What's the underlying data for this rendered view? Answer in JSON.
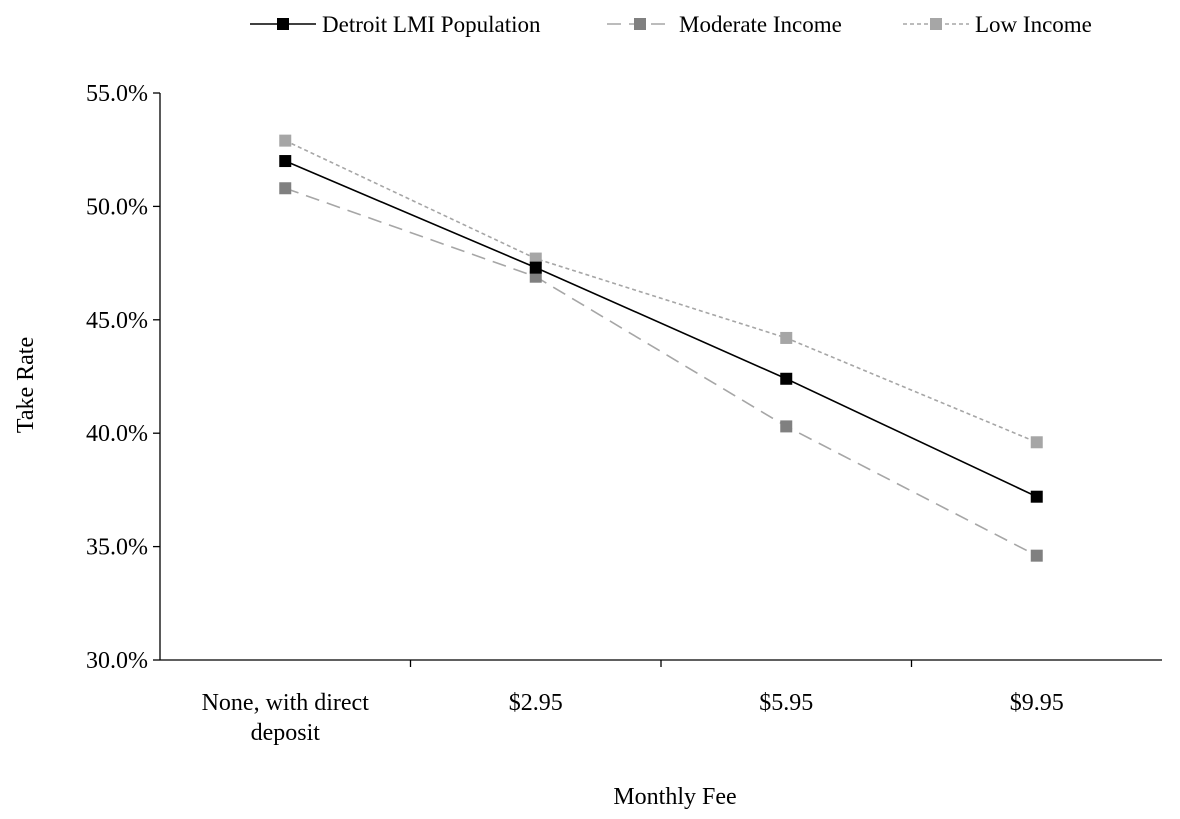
{
  "chart_data": {
    "type": "line",
    "xlabel": "Monthly Fee",
    "ylabel": "Take Rate",
    "categories": [
      [
        "None, with direct",
        "deposit"
      ],
      [
        "$2.95"
      ],
      [
        "$5.95"
      ],
      [
        "$9.95"
      ]
    ],
    "ylim": [
      30.0,
      55.0
    ],
    "y_ticks": [
      30.0,
      35.0,
      40.0,
      45.0,
      50.0,
      55.0
    ],
    "y_tick_labels": [
      "30.0%",
      "35.0%",
      "40.0%",
      "45.0%",
      "50.0%",
      "55.0%"
    ],
    "grid": false,
    "legend_position": "top",
    "series": [
      {
        "name": "Detroit LMI Population",
        "values": [
          52.0,
          47.3,
          42.4,
          37.2
        ],
        "color": "#000000",
        "line_style": "solid",
        "marker_color": "#000000"
      },
      {
        "name": "Moderate Income",
        "values": [
          50.8,
          46.9,
          40.3,
          34.6
        ],
        "color": "#a6a6a6",
        "line_style": "dashed",
        "marker_color": "#808080"
      },
      {
        "name": "Low Income",
        "values": [
          52.9,
          47.7,
          44.2,
          39.6
        ],
        "color": "#a6a6a6",
        "line_style": "dotted",
        "marker_color": "#a6a6a6"
      }
    ]
  }
}
